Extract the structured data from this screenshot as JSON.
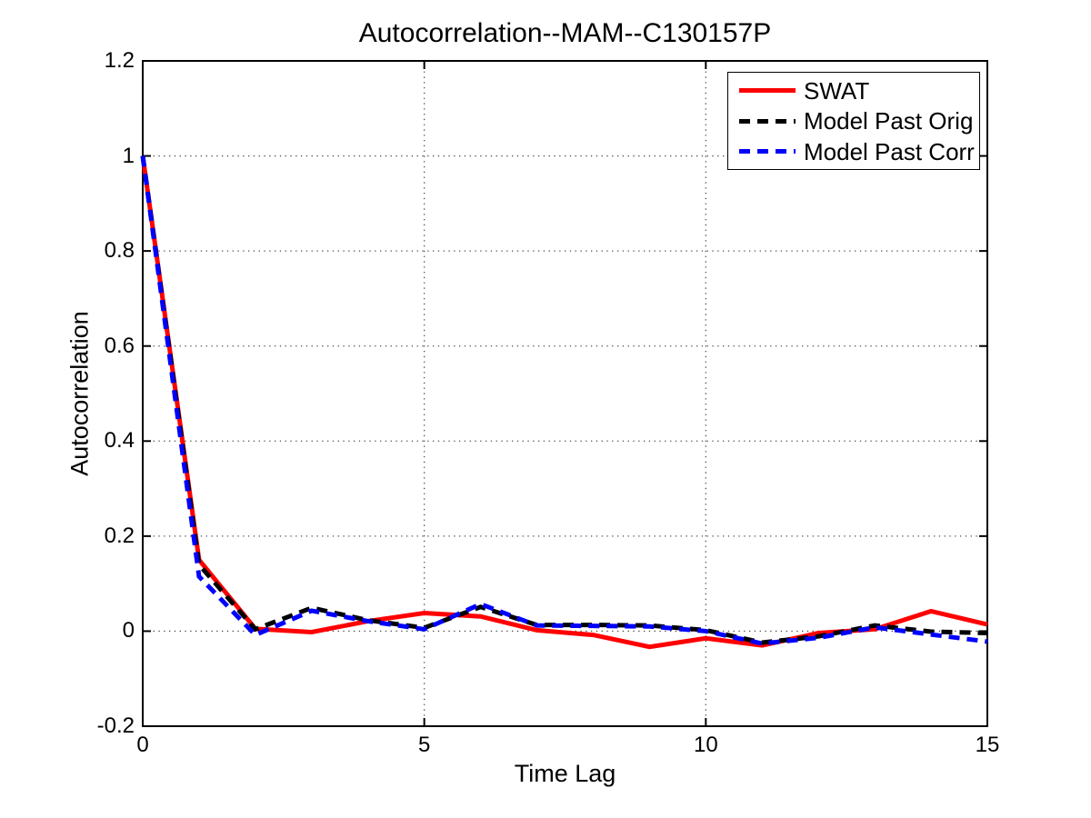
{
  "chart_data": {
    "type": "line",
    "title": "Autocorrelation--MAM--C130157P",
    "xlabel": "Time Lag",
    "ylabel": "Autocorrelation",
    "xlim": [
      0,
      15
    ],
    "ylim": [
      -0.2,
      1.2
    ],
    "x_ticks": [
      0,
      5,
      10,
      15
    ],
    "x_tick_labels": [
      "0",
      "5",
      "10",
      "15"
    ],
    "y_ticks": [
      -0.2,
      0,
      0.2,
      0.4,
      0.6,
      0.8,
      1,
      1.2
    ],
    "y_tick_labels": [
      "-0.2",
      "0",
      "0.2",
      "0.4",
      "0.6",
      "0.8",
      "1",
      "1.2"
    ],
    "grid": "dotted",
    "grid_color": "#4d4d4d",
    "axis_color": "#000000",
    "legend_position": "top-right",
    "x": [
      0,
      1,
      2,
      3,
      4,
      5,
      6,
      7,
      8,
      9,
      10,
      11,
      12,
      13,
      14,
      15
    ],
    "series": [
      {
        "name": "SWAT",
        "color": "#ff0000",
        "style": "solid",
        "values": [
          1.0,
          0.15,
          0.005,
          -0.002,
          0.021,
          0.038,
          0.031,
          0.002,
          -0.008,
          -0.033,
          -0.015,
          -0.03,
          -0.004,
          0.004,
          0.042,
          0.014
        ]
      },
      {
        "name": "Model Past Orig",
        "color": "#000000",
        "style": "dashed",
        "values": [
          1.0,
          0.14,
          0.004,
          0.049,
          0.023,
          0.007,
          0.051,
          0.013,
          0.013,
          0.012,
          0.002,
          -0.024,
          -0.011,
          0.012,
          -0.001,
          -0.004
        ]
      },
      {
        "name": "Model Past Corr",
        "color": "#0000ff",
        "style": "dashed",
        "values": [
          1.0,
          0.115,
          -0.008,
          0.043,
          0.021,
          0.004,
          0.057,
          0.012,
          0.011,
          0.01,
          0.0,
          -0.026,
          -0.014,
          0.008,
          -0.007,
          -0.022
        ]
      }
    ]
  }
}
